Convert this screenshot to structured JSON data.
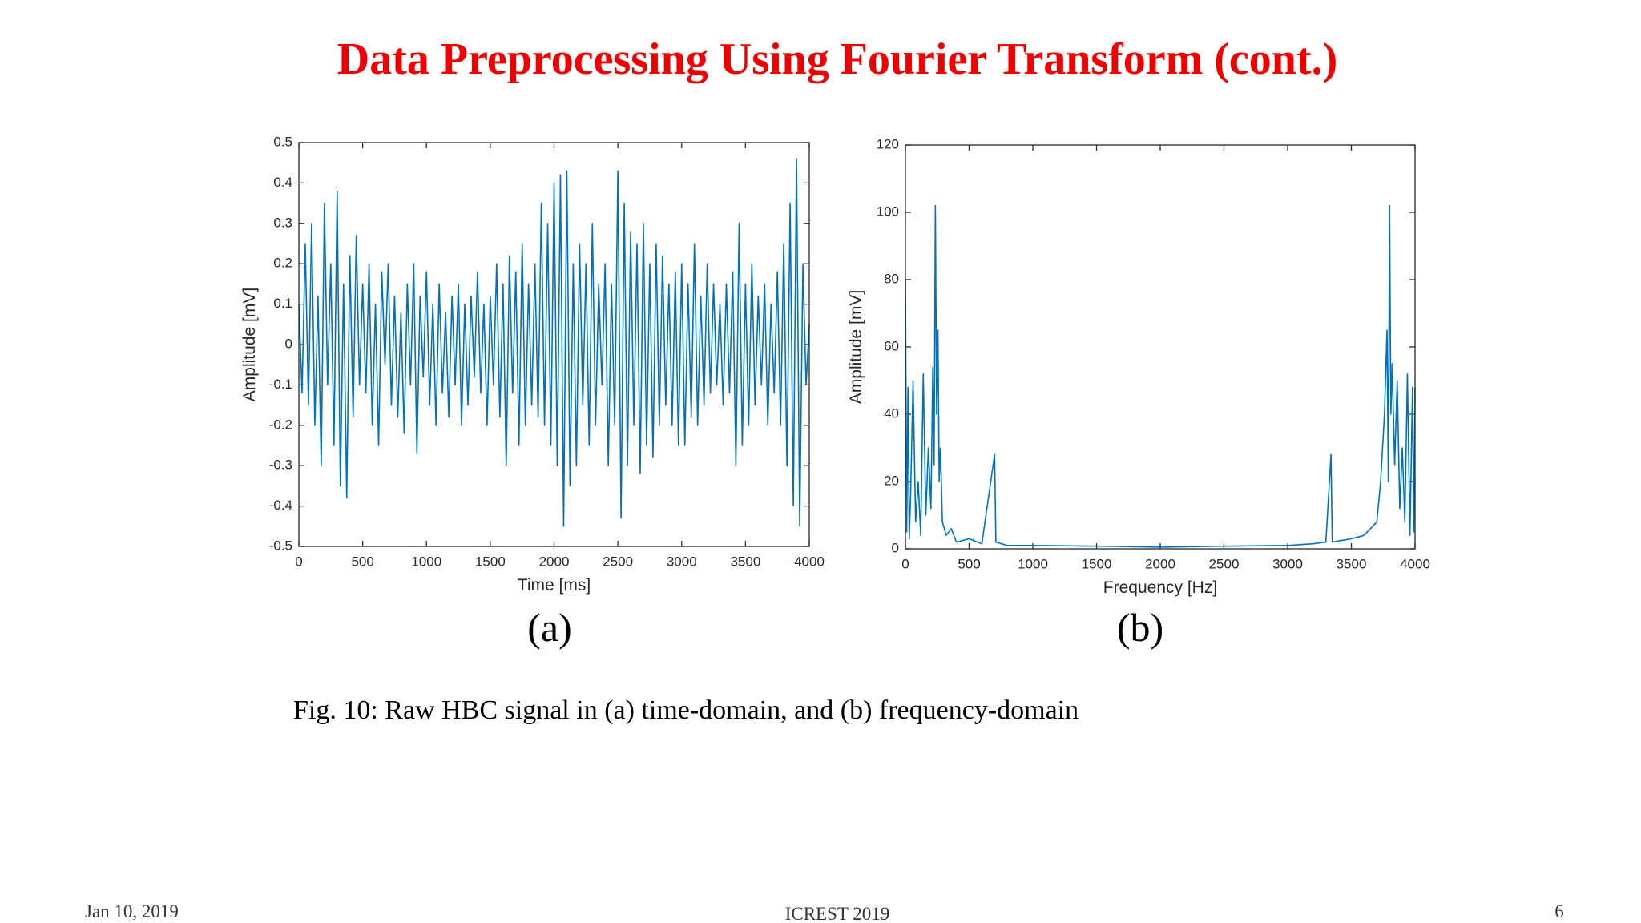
{
  "title": "Data Preprocessing Using Fourier Transform (cont.)",
  "chart_data": [
    {
      "type": "line",
      "subcaption": "(a)",
      "xlabel": "Time [ms]",
      "ylabel": "Amplitude [mV]",
      "color": "#0072bd",
      "grid": false,
      "xlim": [
        0,
        4000
      ],
      "xticks": [
        0,
        500,
        1000,
        1500,
        2000,
        2500,
        3000,
        3500,
        4000
      ],
      "ylim": [
        -0.5,
        0.5
      ],
      "yticks": [
        -0.5,
        -0.4,
        -0.3,
        -0.2,
        -0.1,
        0,
        0.1,
        0.2,
        0.3,
        0.4,
        0.5
      ],
      "x": [
        0,
        25,
        50,
        75,
        100,
        125,
        150,
        175,
        200,
        225,
        250,
        275,
        300,
        325,
        350,
        375,
        400,
        425,
        450,
        475,
        500,
        525,
        550,
        575,
        600,
        625,
        650,
        675,
        700,
        725,
        750,
        775,
        800,
        825,
        850,
        875,
        900,
        925,
        950,
        975,
        1000,
        1025,
        1050,
        1075,
        1100,
        1125,
        1150,
        1175,
        1200,
        1225,
        1250,
        1275,
        1300,
        1325,
        1350,
        1375,
        1400,
        1425,
        1450,
        1475,
        1500,
        1525,
        1550,
        1575,
        1600,
        1625,
        1650,
        1675,
        1700,
        1725,
        1750,
        1775,
        1800,
        1825,
        1850,
        1875,
        1900,
        1925,
        1950,
        1975,
        2000,
        2025,
        2050,
        2075,
        2100,
        2125,
        2150,
        2175,
        2200,
        2225,
        2250,
        2275,
        2300,
        2325,
        2350,
        2375,
        2400,
        2425,
        2450,
        2475,
        2500,
        2525,
        2550,
        2575,
        2600,
        2625,
        2650,
        2675,
        2700,
        2725,
        2750,
        2775,
        2800,
        2825,
        2850,
        2875,
        2900,
        2925,
        2950,
        2975,
        3000,
        3025,
        3050,
        3075,
        3100,
        3125,
        3150,
        3175,
        3200,
        3225,
        3250,
        3275,
        3300,
        3325,
        3350,
        3375,
        3400,
        3425,
        3450,
        3475,
        3500,
        3525,
        3550,
        3575,
        3600,
        3625,
        3650,
        3675,
        3700,
        3725,
        3750,
        3775,
        3800,
        3825,
        3850,
        3875,
        3900,
        3925,
        3950,
        3975,
        4000
      ],
      "values": [
        0.1,
        -0.12,
        0.25,
        -0.15,
        0.3,
        -0.2,
        0.12,
        -0.3,
        0.35,
        -0.1,
        0.2,
        -0.25,
        0.38,
        -0.35,
        0.15,
        -0.38,
        0.22,
        -0.18,
        0.27,
        -0.1,
        0.15,
        -0.12,
        0.2,
        -0.2,
        0.1,
        -0.25,
        0.18,
        -0.05,
        0.2,
        -0.15,
        0.12,
        -0.18,
        0.08,
        -0.22,
        0.15,
        -0.1,
        0.2,
        -0.27,
        0.12,
        -0.08,
        0.18,
        -0.15,
        0.1,
        -0.2,
        0.15,
        -0.12,
        0.08,
        -0.18,
        0.12,
        -0.1,
        0.15,
        -0.2,
        0.1,
        -0.15,
        0.12,
        -0.08,
        0.18,
        -0.12,
        0.1,
        -0.2,
        0.12,
        -0.1,
        0.2,
        -0.18,
        0.15,
        -0.3,
        0.22,
        -0.12,
        0.18,
        -0.25,
        0.25,
        -0.2,
        0.15,
        -0.15,
        0.2,
        -0.18,
        0.35,
        -0.2,
        0.3,
        -0.25,
        0.4,
        -0.3,
        0.42,
        -0.45,
        0.43,
        -0.35,
        0.2,
        -0.3,
        0.25,
        -0.15,
        0.2,
        -0.25,
        0.3,
        -0.2,
        0.15,
        -0.1,
        0.2,
        -0.3,
        0.15,
        -0.2,
        0.43,
        -0.43,
        0.35,
        -0.3,
        0.28,
        -0.2,
        0.25,
        -0.32,
        0.3,
        -0.25,
        0.2,
        -0.28,
        0.25,
        -0.2,
        0.22,
        -0.15,
        0.15,
        -0.2,
        0.18,
        -0.25,
        0.2,
        -0.25,
        0.15,
        -0.18,
        0.25,
        -0.2,
        0.12,
        -0.15,
        0.2,
        -0.12,
        0.15,
        -0.1,
        0.1,
        -0.15,
        0.15,
        -0.12,
        0.18,
        -0.3,
        0.3,
        -0.25,
        0.15,
        -0.2,
        0.2,
        -0.15,
        0.12,
        -0.1,
        0.15,
        -0.2,
        0.1,
        -0.12,
        0.18,
        -0.2,
        0.25,
        -0.3,
        0.35,
        -0.4,
        0.46,
        -0.45,
        0.2,
        -0.1,
        0.05
      ]
    },
    {
      "type": "line",
      "subcaption": "(b)",
      "xlabel": "Frequency [Hz]",
      "ylabel": "Amplitude [mV]",
      "color": "#0072bd",
      "grid": false,
      "xlim": [
        0,
        4000
      ],
      "xticks": [
        0,
        500,
        1000,
        1500,
        2000,
        2500,
        3000,
        3500,
        4000
      ],
      "ylim": [
        0,
        120
      ],
      "yticks": [
        0,
        20,
        40,
        60,
        80,
        100,
        120
      ],
      "x": [
        0,
        10,
        20,
        30,
        40,
        60,
        80,
        100,
        120,
        140,
        160,
        180,
        200,
        215,
        225,
        235,
        245,
        255,
        265,
        275,
        290,
        320,
        360,
        400,
        500,
        600,
        700,
        710,
        800,
        1000,
        1500,
        2000,
        2500,
        3000,
        3200,
        3300,
        3340,
        3350,
        3500,
        3600,
        3700,
        3730,
        3760,
        3780,
        3790,
        3800,
        3810,
        3820,
        3840,
        3860,
        3880,
        3900,
        3920,
        3940,
        3960,
        3980,
        3990,
        4000
      ],
      "values": [
        80,
        5,
        48,
        3,
        15,
        50,
        8,
        20,
        4,
        52,
        10,
        30,
        12,
        54,
        25,
        102,
        40,
        65,
        20,
        30,
        8,
        4,
        6,
        2,
        3,
        1.5,
        28,
        2,
        1,
        1,
        0.8,
        0.5,
        0.8,
        1,
        1.5,
        2,
        28,
        2,
        3,
        4,
        8,
        20,
        40,
        65,
        20,
        102,
        40,
        55,
        25,
        50,
        12,
        30,
        8,
        52,
        4,
        48,
        5,
        48
      ]
    }
  ],
  "caption": "Fig. 10: Raw HBC signal in (a) time-domain, and (b) frequency-domain",
  "footer": {
    "date": "Jan 10, 2019",
    "event": "ICREST 2019",
    "page": "6"
  }
}
